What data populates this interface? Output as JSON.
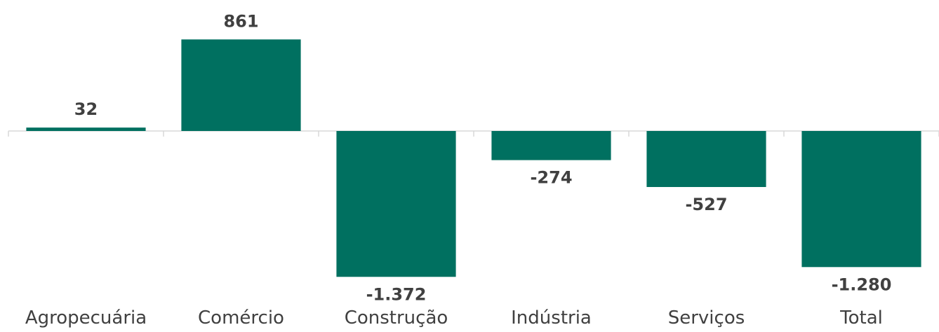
{
  "chart_data": {
    "type": "bar",
    "categories": [
      "Agropecuária",
      "Comércio",
      "Construção",
      "Indústria",
      "Serviços",
      "Total"
    ],
    "values": [
      32,
      861,
      -1372,
      -274,
      -527,
      -1280
    ],
    "value_labels": [
      "32",
      "861",
      "-1.372",
      "-274",
      "-527",
      "-1.280"
    ],
    "ylim": [
      -1700,
      1100
    ],
    "grid": false,
    "color": "#007060"
  }
}
